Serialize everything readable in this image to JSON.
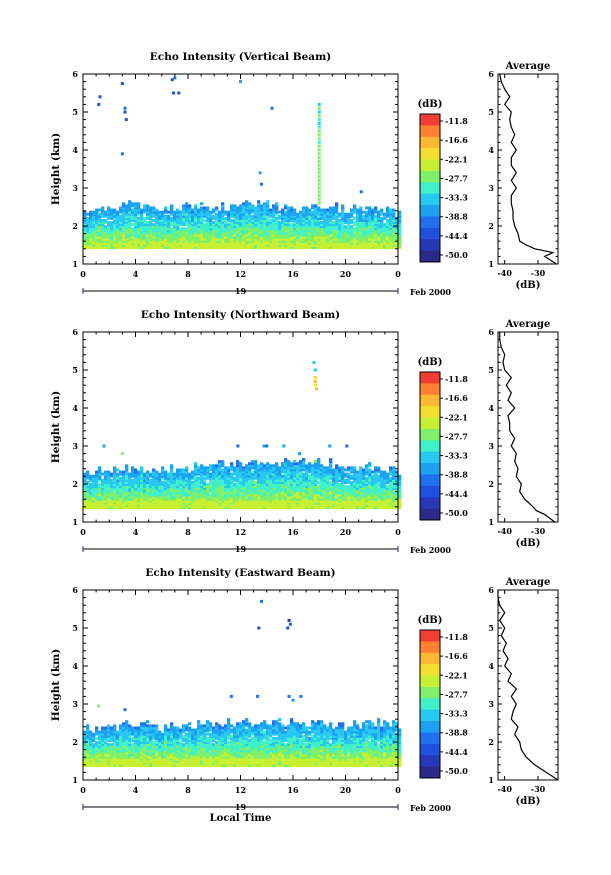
{
  "chart_data": [
    {
      "type": "heatmap",
      "title": "Echo Intensity (Vertical Beam)",
      "ylabel": "Height (km)",
      "xlabel": "",
      "xlim": [
        0,
        24
      ],
      "ylim": [
        1,
        6
      ],
      "x_ticks": [
        "0",
        "4",
        "8",
        "12",
        "16",
        "20",
        "0"
      ],
      "y_ticks": [
        "1",
        "2",
        "3",
        "4",
        "5",
        "6"
      ],
      "date_label": "19",
      "month_label": "Feb 2000",
      "colorbar_label": "(dB)",
      "colorbar_ticks": [
        "-11.8",
        "-16.6",
        "-22.1",
        "-27.7",
        "-33.3",
        "-38.8",
        "-44.4",
        "-50.0"
      ],
      "echo_layer": {
        "bottom_km": 1.4,
        "top_km": [
          2.3,
          2.45,
          2.55,
          2.4,
          2.5,
          2.45,
          2.5,
          2.55,
          2.45,
          2.5,
          2.4,
          2.45,
          2.3
        ],
        "top_times_h": [
          0,
          2,
          4,
          6,
          8,
          10,
          12,
          14,
          16,
          18,
          20,
          22,
          24
        ]
      },
      "scattered_echoes": [
        {
          "t": 1.2,
          "h": 5.2,
          "db": -44.4
        },
        {
          "t": 1.3,
          "h": 5.4,
          "db": -44.4
        },
        {
          "t": 3.0,
          "h": 5.75,
          "db": -44.4
        },
        {
          "t": 3.2,
          "h": 5.1,
          "db": -41.6
        },
        {
          "t": 3.3,
          "h": 4.8,
          "db": -44.4
        },
        {
          "t": 3.2,
          "h": 5.0,
          "db": -44.4
        },
        {
          "t": 3.0,
          "h": 3.9,
          "db": -41.6
        },
        {
          "t": 6.8,
          "h": 5.85,
          "db": -44.4
        },
        {
          "t": 7.0,
          "h": 5.9,
          "db": -41.6
        },
        {
          "t": 6.9,
          "h": 5.5,
          "db": -44.4
        },
        {
          "t": 7.3,
          "h": 5.5,
          "db": -44.4
        },
        {
          "t": 12.0,
          "h": 5.8,
          "db": -38.8
        },
        {
          "t": 14.4,
          "h": 5.1,
          "db": -41.6
        },
        {
          "t": 13.5,
          "h": 3.4,
          "db": -36.0
        },
        {
          "t": 13.6,
          "h": 3.1,
          "db": -41.6
        },
        {
          "t": 18.0,
          "h": 5.1,
          "db": -27.7
        },
        {
          "t": 18.0,
          "h": 5.0,
          "db": -33.3
        },
        {
          "t": 18.0,
          "h": 4.9,
          "db": -27.7
        },
        {
          "t": 18.0,
          "h": 5.2,
          "db": -33.3
        },
        {
          "t": 18.0,
          "h": 4.6,
          "db": -30.5
        },
        {
          "t": 18.0,
          "h": 4.8,
          "db": -30.5
        },
        {
          "t": 18.0,
          "h": 4.7,
          "db": -33.3
        },
        {
          "t": 18.0,
          "h": 4.5,
          "db": -27.7
        },
        {
          "t": 18.0,
          "h": 4.4,
          "db": -27.7
        },
        {
          "t": 18.0,
          "h": 4.3,
          "db": -27.7
        },
        {
          "t": 18.0,
          "h": 4.2,
          "db": -30.5
        },
        {
          "t": 18.0,
          "h": 4.1,
          "db": -27.7
        },
        {
          "t": 18.0,
          "h": 4.0,
          "db": -27.7
        },
        {
          "t": 18.0,
          "h": 3.9,
          "db": -27.7
        },
        {
          "t": 18.0,
          "h": 3.8,
          "db": -27.7
        },
        {
          "t": 18.0,
          "h": 3.7,
          "db": -27.7
        },
        {
          "t": 18.0,
          "h": 3.6,
          "db": -27.7
        },
        {
          "t": 18.0,
          "h": 3.5,
          "db": -27.7
        },
        {
          "t": 18.0,
          "h": 3.4,
          "db": -27.7
        },
        {
          "t": 18.0,
          "h": 3.3,
          "db": -27.7
        },
        {
          "t": 18.0,
          "h": 3.2,
          "db": -27.7
        },
        {
          "t": 18.0,
          "h": 3.1,
          "db": -27.7
        },
        {
          "t": 18.0,
          "h": 3.0,
          "db": -27.7
        },
        {
          "t": 18.0,
          "h": 2.9,
          "db": -27.7
        },
        {
          "t": 18.0,
          "h": 2.8,
          "db": -27.7
        },
        {
          "t": 18.0,
          "h": 2.7,
          "db": -27.7
        },
        {
          "t": 18.0,
          "h": 2.6,
          "db": -27.7
        },
        {
          "t": 21.2,
          "h": 2.9,
          "db": -41.6
        }
      ],
      "average_profile": {
        "title": "Average",
        "xlabel": "(dB)",
        "xlim": [
          -42,
          -24
        ],
        "x_ticks": [
          "-40",
          "-30"
        ],
        "y_ticks": [
          "1",
          "2",
          "3",
          "4",
          "5",
          "6"
        ],
        "h": [
          1.0,
          1.2,
          1.3,
          1.4,
          1.5,
          1.6,
          1.8,
          2.0,
          2.2,
          2.4,
          2.6,
          2.8,
          3.0,
          3.2,
          3.4,
          3.6,
          3.8,
          4.0,
          4.2,
          4.4,
          4.6,
          4.8,
          5.0,
          5.2,
          5.4,
          5.6,
          5.8,
          6.0
        ],
        "db": [
          -24.5,
          -28.0,
          -25.5,
          -31.0,
          -33.5,
          -35.5,
          -36.0,
          -37.0,
          -37.5,
          -37.5,
          -38.0,
          -38.0,
          -36.5,
          -38.0,
          -36.5,
          -38.0,
          -38.0,
          -36.5,
          -38.0,
          -37.0,
          -38.0,
          -38.5,
          -38.0,
          -40.0,
          -38.5,
          -40.0,
          -41.0,
          -41.5
        ]
      }
    },
    {
      "type": "heatmap",
      "title": "Echo Intensity (Northward Beam)",
      "ylabel": "Height (km)",
      "xlabel": "",
      "xlim": [
        0,
        24
      ],
      "ylim": [
        1,
        6
      ],
      "x_ticks": [
        "0",
        "4",
        "8",
        "12",
        "16",
        "20",
        "0"
      ],
      "y_ticks": [
        "1",
        "2",
        "3",
        "4",
        "5",
        "6"
      ],
      "date_label": "19",
      "month_label": "Feb 2000",
      "colorbar_label": "(dB)",
      "colorbar_ticks": [
        "-11.8",
        "-16.6",
        "-22.1",
        "-27.7",
        "-33.3",
        "-38.8",
        "-44.4",
        "-50.0"
      ],
      "echo_layer": {
        "bottom_km": 1.35,
        "top_km": [
          2.3,
          2.35,
          2.4,
          2.35,
          2.4,
          2.45,
          2.5,
          2.55,
          2.5,
          2.55,
          2.45,
          2.4,
          2.3
        ],
        "top_times_h": [
          0,
          2,
          4,
          6,
          8,
          10,
          12,
          14,
          16,
          18,
          20,
          22,
          24
        ]
      },
      "scattered_echoes": [
        {
          "t": 1.6,
          "h": 3.0,
          "db": -38.8
        },
        {
          "t": 3.0,
          "h": 2.8,
          "db": -27.7
        },
        {
          "t": 11.8,
          "h": 3.0,
          "db": -41.6
        },
        {
          "t": 13.8,
          "h": 3.0,
          "db": -38.8
        },
        {
          "t": 14.0,
          "h": 3.0,
          "db": -41.6
        },
        {
          "t": 15.3,
          "h": 3.0,
          "db": -38.8
        },
        {
          "t": 16.5,
          "h": 2.8,
          "db": -38.8
        },
        {
          "t": 17.6,
          "h": 5.2,
          "db": -33.3
        },
        {
          "t": 17.7,
          "h": 5.0,
          "db": -33.3
        },
        {
          "t": 17.7,
          "h": 4.8,
          "db": -22.1
        },
        {
          "t": 17.7,
          "h": 4.7,
          "db": -16.6
        },
        {
          "t": 17.7,
          "h": 4.6,
          "db": -22.1
        },
        {
          "t": 17.8,
          "h": 4.5,
          "db": -16.6
        },
        {
          "t": 17.7,
          "h": 2.6,
          "db": -27.7
        },
        {
          "t": 18.8,
          "h": 3.0,
          "db": -36.0
        },
        {
          "t": 20.1,
          "h": 3.0,
          "db": -41.6
        }
      ],
      "average_profile": {
        "title": "Average",
        "xlabel": "(dB)",
        "xlim": [
          -42,
          -24
        ],
        "x_ticks": [
          "-40",
          "-30"
        ],
        "y_ticks": [
          "1",
          "2",
          "3",
          "4",
          "5",
          "6"
        ],
        "h": [
          1.0,
          1.2,
          1.3,
          1.4,
          1.6,
          1.8,
          2.0,
          2.2,
          2.4,
          2.6,
          2.8,
          3.0,
          3.2,
          3.4,
          3.6,
          3.8,
          4.0,
          4.2,
          4.4,
          4.6,
          4.8,
          5.0,
          5.2,
          5.4,
          5.6,
          5.8,
          6.0
        ],
        "db": [
          -25.0,
          -28.0,
          -30.5,
          -31.5,
          -34.0,
          -35.5,
          -35.0,
          -36.5,
          -36.0,
          -37.0,
          -36.5,
          -38.0,
          -37.0,
          -38.5,
          -38.5,
          -39.0,
          -37.0,
          -39.0,
          -38.0,
          -39.5,
          -38.0,
          -40.0,
          -40.5,
          -40.0,
          -41.0,
          -41.5,
          -41.5
        ]
      }
    },
    {
      "type": "heatmap",
      "title": "Echo Intensity (Eastward Beam)",
      "ylabel": "Height (km)",
      "xlabel": "Local Time",
      "xlim": [
        0,
        24
      ],
      "ylim": [
        1,
        6
      ],
      "x_ticks": [
        "0",
        "4",
        "8",
        "12",
        "16",
        "20",
        "0"
      ],
      "y_ticks": [
        "1",
        "2",
        "3",
        "4",
        "5",
        "6"
      ],
      "date_label": "19",
      "month_label": "Feb 2000",
      "colorbar_label": "(dB)",
      "colorbar_ticks": [
        "-11.8",
        "-16.6",
        "-22.1",
        "-27.7",
        "-33.3",
        "-38.8",
        "-44.4",
        "-50.0"
      ],
      "echo_layer": {
        "bottom_km": 1.35,
        "top_km": [
          2.3,
          2.35,
          2.45,
          2.35,
          2.4,
          2.45,
          2.5,
          2.5,
          2.5,
          2.45,
          2.4,
          2.5,
          2.4
        ],
        "top_times_h": [
          0,
          2,
          4,
          6,
          8,
          10,
          12,
          14,
          16,
          18,
          20,
          22,
          24
        ]
      },
      "scattered_echoes": [
        {
          "t": 1.2,
          "h": 2.95,
          "db": -27.7
        },
        {
          "t": 3.2,
          "h": 2.85,
          "db": -41.6
        },
        {
          "t": 11.3,
          "h": 3.2,
          "db": -41.6
        },
        {
          "t": 13.3,
          "h": 3.2,
          "db": -41.6
        },
        {
          "t": 13.6,
          "h": 5.7,
          "db": -41.6
        },
        {
          "t": 13.4,
          "h": 5.0,
          "db": -44.4
        },
        {
          "t": 15.7,
          "h": 5.2,
          "db": -47.2
        },
        {
          "t": 15.8,
          "h": 5.1,
          "db": -44.4
        },
        {
          "t": 15.6,
          "h": 5.0,
          "db": -44.4
        },
        {
          "t": 15.7,
          "h": 3.2,
          "db": -41.6
        },
        {
          "t": 16.6,
          "h": 3.2,
          "db": -41.6
        },
        {
          "t": 16.0,
          "h": 3.1,
          "db": -38.8
        }
      ],
      "average_profile": {
        "title": "Average",
        "xlabel": "(dB)",
        "xlim": [
          -42,
          -24
        ],
        "x_ticks": [
          "-40",
          "-30"
        ],
        "y_ticks": [
          "1",
          "2",
          "3",
          "4",
          "5",
          "6"
        ],
        "h": [
          1.0,
          1.2,
          1.4,
          1.6,
          1.8,
          2.0,
          2.2,
          2.4,
          2.6,
          2.8,
          3.0,
          3.2,
          3.4,
          3.6,
          3.8,
          4.0,
          4.2,
          4.4,
          4.6,
          4.8,
          5.0,
          5.2,
          5.4,
          5.6,
          5.8,
          6.0
        ],
        "db": [
          -24.0,
          -27.5,
          -31.0,
          -33.5,
          -35.0,
          -35.5,
          -37.0,
          -36.0,
          -38.0,
          -37.5,
          -36.5,
          -38.0,
          -36.5,
          -39.0,
          -38.0,
          -40.0,
          -39.0,
          -40.5,
          -39.5,
          -41.0,
          -40.0,
          -41.5,
          -40.0,
          -41.5,
          -42.0,
          -42.0
        ]
      }
    }
  ],
  "colors": {
    "colorbar_stops": [
      "#f03e32",
      "#ff8030",
      "#fdb832",
      "#f2e030",
      "#c8f032",
      "#7ff06a",
      "#40f0c8",
      "#28c8f0",
      "#1ca0f0",
      "#2070f0",
      "#2050e0",
      "#2836b8",
      "#2a2a88"
    ],
    "background": "#ffffff",
    "axis": "#000000",
    "line": "#000000"
  }
}
